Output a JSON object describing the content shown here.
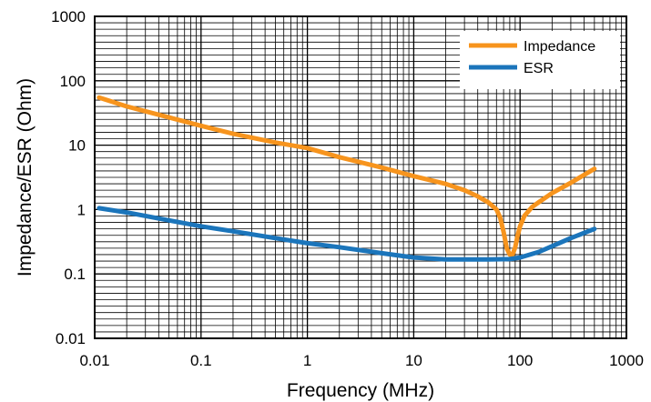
{
  "chart_data": {
    "type": "line",
    "title": "",
    "xlabel": "Frequency (MHz)",
    "ylabel": "Impedance/ESR (Ohm)",
    "x_scale": "log",
    "y_scale": "log",
    "xlim": [
      0.01,
      1000
    ],
    "ylim": [
      0.01,
      1000
    ],
    "x_tick_labels": [
      "0.01",
      "0.1",
      "1",
      "10",
      "100",
      "1000"
    ],
    "y_tick_labels": [
      "0.01",
      "0.1",
      "1",
      "10",
      "100",
      "1000"
    ],
    "grid": true,
    "legend_position": "top-right",
    "series": [
      {
        "name": "Impedance",
        "color": "#f7941d",
        "x": [
          0.011,
          0.02,
          0.05,
          0.1,
          0.2,
          0.5,
          1,
          2,
          5,
          10,
          20,
          30,
          40,
          50,
          60,
          65,
          70,
          75,
          80,
          85,
          90,
          95,
          100,
          110,
          130,
          150,
          200,
          300,
          500
        ],
        "y": [
          55,
          40,
          27,
          20,
          15,
          11,
          9,
          6.5,
          4.5,
          3.3,
          2.5,
          2.0,
          1.6,
          1.3,
          1.0,
          0.75,
          0.45,
          0.25,
          0.2,
          0.2,
          0.26,
          0.4,
          0.55,
          0.8,
          1.1,
          1.3,
          1.8,
          2.6,
          4.3
        ]
      },
      {
        "name": "ESR",
        "color": "#1b75bb",
        "x": [
          0.011,
          0.02,
          0.05,
          0.1,
          0.2,
          0.5,
          1,
          2,
          5,
          10,
          20,
          30,
          50,
          80,
          100,
          150,
          200,
          300,
          500
        ],
        "y": [
          1.05,
          0.9,
          0.68,
          0.55,
          0.46,
          0.36,
          0.3,
          0.26,
          0.21,
          0.18,
          0.168,
          0.168,
          0.168,
          0.17,
          0.18,
          0.22,
          0.27,
          0.36,
          0.5
        ]
      }
    ]
  }
}
